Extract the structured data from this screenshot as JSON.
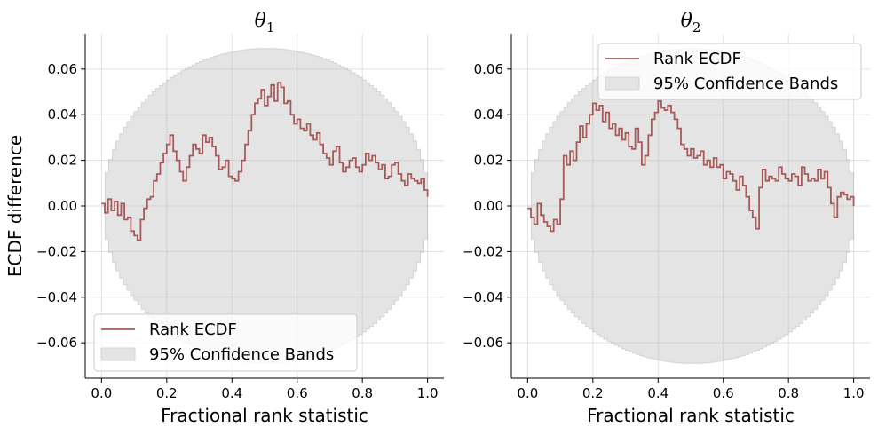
{
  "chart_data": [
    {
      "type": "line",
      "title": "θ",
      "title_subscript": "1",
      "xlabel": "Fractional rank statistic",
      "ylabel": "ECDF difference",
      "xlim": [
        -0.05,
        1.05
      ],
      "ylim": [
        -0.0755,
        0.0755
      ],
      "xticks": [
        0.0,
        0.2,
        0.4,
        0.6,
        0.8,
        1.0
      ],
      "xtick_labels": [
        "0.0",
        "0.2",
        "0.4",
        "0.6",
        "0.8",
        "1.0"
      ],
      "yticks": [
        -0.06,
        -0.04,
        -0.02,
        0.0,
        0.02,
        0.04,
        0.06
      ],
      "ytick_labels": [
        "−0.06",
        "−0.04",
        "−0.02",
        "0.00",
        "0.02",
        "0.04",
        "0.06"
      ],
      "grid": true,
      "legend_position": "lower-left",
      "legend": [
        "Rank ECDF",
        "95% Confidence Bands"
      ],
      "colors": {
        "line": "#a85a5a",
        "band": "#e4e4e4",
        "band_edge": "#d4d4d4"
      },
      "band_half_width_peak": 0.069,
      "series": [
        {
          "name": "Rank ECDF",
          "x": [
            0.0,
            0.01,
            0.02,
            0.03,
            0.04,
            0.05,
            0.06,
            0.07,
            0.08,
            0.09,
            0.1,
            0.11,
            0.12,
            0.13,
            0.14,
            0.15,
            0.16,
            0.17,
            0.18,
            0.19,
            0.2,
            0.21,
            0.22,
            0.23,
            0.24,
            0.25,
            0.26,
            0.27,
            0.28,
            0.29,
            0.3,
            0.31,
            0.32,
            0.33,
            0.34,
            0.35,
            0.36,
            0.37,
            0.38,
            0.39,
            0.4,
            0.41,
            0.42,
            0.43,
            0.44,
            0.45,
            0.46,
            0.47,
            0.48,
            0.49,
            0.5,
            0.51,
            0.52,
            0.53,
            0.54,
            0.55,
            0.56,
            0.57,
            0.58,
            0.59,
            0.6,
            0.61,
            0.62,
            0.63,
            0.64,
            0.65,
            0.66,
            0.67,
            0.68,
            0.69,
            0.7,
            0.71,
            0.72,
            0.73,
            0.74,
            0.75,
            0.76,
            0.77,
            0.78,
            0.79,
            0.8,
            0.81,
            0.82,
            0.83,
            0.84,
            0.85,
            0.86,
            0.87,
            0.88,
            0.89,
            0.9,
            0.91,
            0.92,
            0.93,
            0.94,
            0.95,
            0.96,
            0.97,
            0.98,
            0.99,
            1.0
          ],
          "y": [
            0.001,
            -0.003,
            0.003,
            -0.002,
            0.002,
            -0.004,
            0.001,
            -0.006,
            -0.005,
            -0.011,
            -0.013,
            -0.015,
            -0.006,
            -0.001,
            0.003,
            0.004,
            0.011,
            0.014,
            0.019,
            0.023,
            0.027,
            0.031,
            0.024,
            0.02,
            0.015,
            0.011,
            0.017,
            0.022,
            0.027,
            0.025,
            0.023,
            0.031,
            0.028,
            0.03,
            0.026,
            0.022,
            0.016,
            0.017,
            0.02,
            0.013,
            0.012,
            0.011,
            0.015,
            0.02,
            0.027,
            0.033,
            0.04,
            0.045,
            0.047,
            0.051,
            0.044,
            0.048,
            0.053,
            0.046,
            0.054,
            0.052,
            0.045,
            0.046,
            0.04,
            0.036,
            0.038,
            0.034,
            0.033,
            0.036,
            0.031,
            0.029,
            0.032,
            0.027,
            0.023,
            0.021,
            0.018,
            0.024,
            0.026,
            0.019,
            0.015,
            0.017,
            0.02,
            0.021,
            0.017,
            0.015,
            0.018,
            0.023,
            0.02,
            0.022,
            0.019,
            0.016,
            0.018,
            0.012,
            0.013,
            0.018,
            0.019,
            0.014,
            0.011,
            0.009,
            0.014,
            0.012,
            0.011,
            0.01,
            0.012,
            0.007,
            0.004
          ]
        }
      ]
    },
    {
      "type": "line",
      "title": "θ",
      "title_subscript": "2",
      "xlabel": "Fractional rank statistic",
      "ylabel": "",
      "xlim": [
        -0.05,
        1.05
      ],
      "ylim": [
        -0.0755,
        0.0755
      ],
      "xticks": [
        0.0,
        0.2,
        0.4,
        0.6,
        0.8,
        1.0
      ],
      "xtick_labels": [
        "0.0",
        "0.2",
        "0.4",
        "0.6",
        "0.8",
        "1.0"
      ],
      "yticks": [
        -0.06,
        -0.04,
        -0.02,
        0.0,
        0.02,
        0.04,
        0.06
      ],
      "ytick_labels": [
        "−0.06",
        "−0.04",
        "−0.02",
        "0.00",
        "0.02",
        "0.04",
        "0.06"
      ],
      "grid": true,
      "legend_position": "upper-right",
      "legend": [
        "Rank ECDF",
        "95% Confidence Bands"
      ],
      "colors": {
        "line": "#a85a5a",
        "band": "#e4e4e4",
        "band_edge": "#d4d4d4"
      },
      "band_half_width_peak": 0.069,
      "series": [
        {
          "name": "Rank ECDF",
          "x": [
            0.0,
            0.01,
            0.02,
            0.03,
            0.04,
            0.05,
            0.06,
            0.07,
            0.08,
            0.09,
            0.1,
            0.11,
            0.12,
            0.13,
            0.14,
            0.15,
            0.16,
            0.17,
            0.18,
            0.19,
            0.2,
            0.21,
            0.22,
            0.23,
            0.24,
            0.25,
            0.26,
            0.27,
            0.28,
            0.29,
            0.3,
            0.31,
            0.32,
            0.33,
            0.34,
            0.35,
            0.36,
            0.37,
            0.38,
            0.39,
            0.4,
            0.41,
            0.42,
            0.43,
            0.44,
            0.45,
            0.46,
            0.47,
            0.48,
            0.49,
            0.5,
            0.51,
            0.52,
            0.53,
            0.54,
            0.55,
            0.56,
            0.57,
            0.58,
            0.59,
            0.6,
            0.61,
            0.62,
            0.63,
            0.64,
            0.65,
            0.66,
            0.67,
            0.68,
            0.69,
            0.7,
            0.71,
            0.72,
            0.73,
            0.74,
            0.75,
            0.76,
            0.77,
            0.78,
            0.79,
            0.8,
            0.81,
            0.82,
            0.83,
            0.84,
            0.85,
            0.86,
            0.87,
            0.88,
            0.89,
            0.9,
            0.91,
            0.92,
            0.93,
            0.94,
            0.95,
            0.96,
            0.97,
            0.98,
            0.99,
            1.0
          ],
          "y": [
            -0.001,
            -0.005,
            -0.008,
            0.001,
            -0.004,
            -0.007,
            -0.009,
            -0.011,
            -0.006,
            -0.008,
            0.003,
            0.022,
            0.018,
            0.024,
            0.02,
            0.028,
            0.035,
            0.03,
            0.036,
            0.04,
            0.045,
            0.042,
            0.044,
            0.037,
            0.041,
            0.034,
            0.036,
            0.031,
            0.034,
            0.029,
            0.032,
            0.026,
            0.025,
            0.034,
            0.028,
            0.018,
            0.022,
            0.031,
            0.038,
            0.041,
            0.046,
            0.043,
            0.042,
            0.044,
            0.041,
            0.038,
            0.034,
            0.027,
            0.025,
            0.022,
            0.025,
            0.021,
            0.022,
            0.024,
            0.018,
            0.02,
            0.017,
            0.021,
            0.017,
            0.018,
            0.012,
            0.015,
            0.014,
            0.011,
            0.007,
            0.013,
            0.009,
            0.004,
            -0.002,
            -0.005,
            -0.01,
            0.008,
            0.016,
            0.011,
            0.013,
            0.012,
            0.011,
            0.017,
            0.014,
            0.012,
            0.011,
            0.014,
            0.013,
            0.009,
            0.017,
            0.014,
            0.011,
            0.012,
            0.011,
            0.016,
            0.012,
            0.015,
            0.008,
            0.001,
            -0.005,
            0.004,
            0.006,
            0.005,
            0.003,
            0.004,
            0.0
          ]
        }
      ]
    }
  ]
}
